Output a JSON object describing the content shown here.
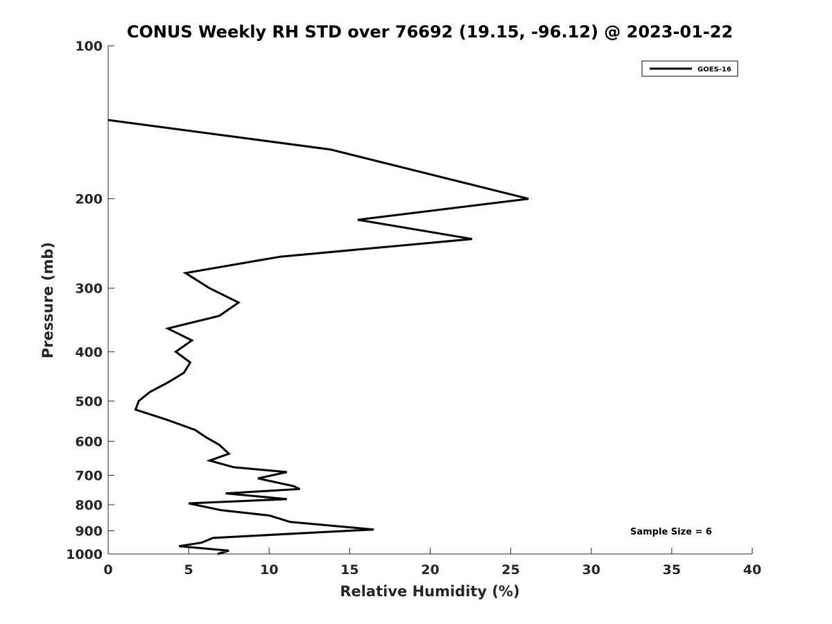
{
  "chart_data": {
    "type": "line",
    "title": "CONUS Weekly RH STD over 76692 (19.15, -96.12) @ 2023-01-22",
    "xlabel": "Relative Humidity (%)",
    "ylabel": "Pressure (mb)",
    "xlim": [
      0,
      40
    ],
    "ylim": [
      100,
      1000
    ],
    "y_scale": "log",
    "y_reversed": true,
    "x_ticks": [
      "0",
      "5",
      "10",
      "15",
      "20",
      "25",
      "30",
      "35",
      "40"
    ],
    "y_ticks": [
      "100",
      "200",
      "300",
      "400",
      "500",
      "600",
      "700",
      "800",
      "900",
      "1000"
    ],
    "grid": false,
    "legend_position": "top-right",
    "series": [
      {
        "name": "GOES-16",
        "color": "#000000",
        "points": [
          [
            0,
            140
          ],
          [
            13.8,
            160
          ],
          [
            26.1,
            200
          ],
          [
            15.5,
            220
          ],
          [
            22.6,
            240
          ],
          [
            10.7,
            260
          ],
          [
            4.8,
            280
          ],
          [
            6.3,
            300
          ],
          [
            8.1,
            320
          ],
          [
            6.9,
            340
          ],
          [
            3.7,
            360
          ],
          [
            5.2,
            380
          ],
          [
            4.2,
            400
          ],
          [
            5.1,
            420
          ],
          [
            4.7,
            440
          ],
          [
            3.7,
            460
          ],
          [
            2.6,
            480
          ],
          [
            1.9,
            500
          ],
          [
            1.7,
            520
          ],
          [
            3.7,
            545
          ],
          [
            5.4,
            570
          ],
          [
            6.1,
            590
          ],
          [
            6.9,
            610
          ],
          [
            7.5,
            635
          ],
          [
            6.3,
            655
          ],
          [
            7.8,
            675
          ],
          [
            11.1,
            690
          ],
          [
            9.3,
            710
          ],
          [
            11.5,
            735
          ],
          [
            11.9,
            745
          ],
          [
            7.3,
            760
          ],
          [
            11.1,
            780
          ],
          [
            5.0,
            795
          ],
          [
            7.0,
            820
          ],
          [
            10.0,
            840
          ],
          [
            11.3,
            865
          ],
          [
            16.5,
            895
          ],
          [
            13.5,
            905
          ],
          [
            6.5,
            930
          ],
          [
            5.8,
            950
          ],
          [
            4.4,
            965
          ],
          [
            7.5,
            985
          ],
          [
            6.8,
            1000
          ]
        ]
      }
    ],
    "annotation": "Sample Size = 6"
  }
}
